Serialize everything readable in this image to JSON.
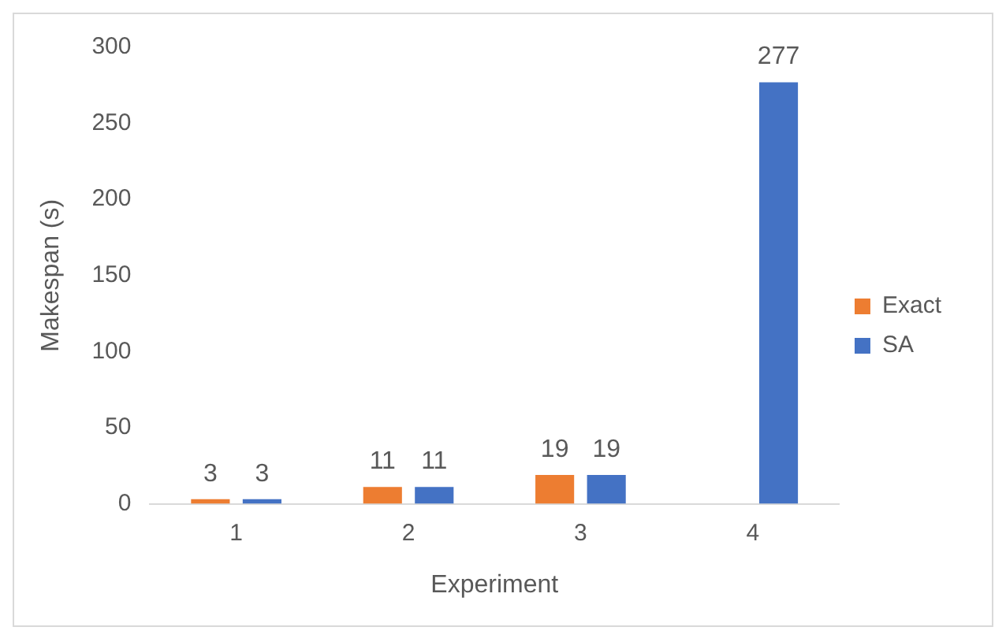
{
  "chart_data": {
    "type": "bar",
    "xlabel": "Experiment",
    "ylabel": "Makespan (s)",
    "categories": [
      "1",
      "2",
      "3",
      "4"
    ],
    "series": [
      {
        "name": "Exact",
        "color": "#ed7d31",
        "values": [
          3,
          11,
          19,
          null
        ]
      },
      {
        "name": "SA",
        "color": "#4472c4",
        "values": [
          3,
          11,
          19,
          277
        ]
      }
    ],
    "ylim": [
      0,
      300
    ],
    "yticks": [
      0,
      50,
      100,
      150,
      200,
      250,
      300
    ],
    "grid": false,
    "legend": "right",
    "data_labels": true
  }
}
